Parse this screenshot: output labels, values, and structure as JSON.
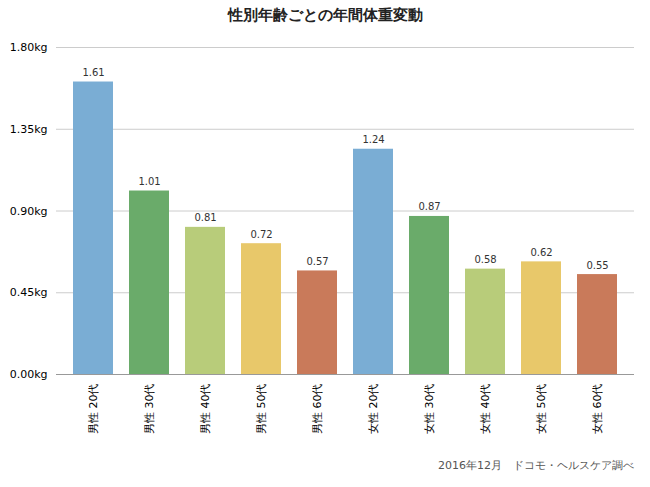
{
  "chart_data": {
    "type": "bar",
    "title": "性別年齢ごとの年間体重変動",
    "categories": [
      "男性 20代",
      "男性 30代",
      "男性 40代",
      "男性 50代",
      "男性 60代",
      "女性 20代",
      "女性 30代",
      "女性 40代",
      "女性 50代",
      "女性 60代"
    ],
    "values": [
      1.61,
      1.01,
      0.81,
      0.72,
      0.57,
      1.24,
      0.87,
      0.58,
      0.62,
      0.55
    ],
    "colors": [
      "#7aadd4",
      "#6aab6a",
      "#b8cc7a",
      "#e8c86a",
      "#c97a5a",
      "#7aadd4",
      "#6aab6a",
      "#b8cc7a",
      "#e8c86a",
      "#c97a5a"
    ],
    "ylim": [
      0,
      1.8
    ],
    "yticks": [
      {
        "value": 0.0,
        "label": "0.00kg"
      },
      {
        "value": 0.45,
        "label": "0.45kg"
      },
      {
        "value": 0.9,
        "label": "0.90kg"
      },
      {
        "value": 1.35,
        "label": "1.35kg"
      },
      {
        "value": 1.8,
        "label": "1.80kg"
      }
    ],
    "grid": true,
    "data_labels": true,
    "footnote": "2016年12月　ドコモ・ヘルスケア調べ"
  }
}
